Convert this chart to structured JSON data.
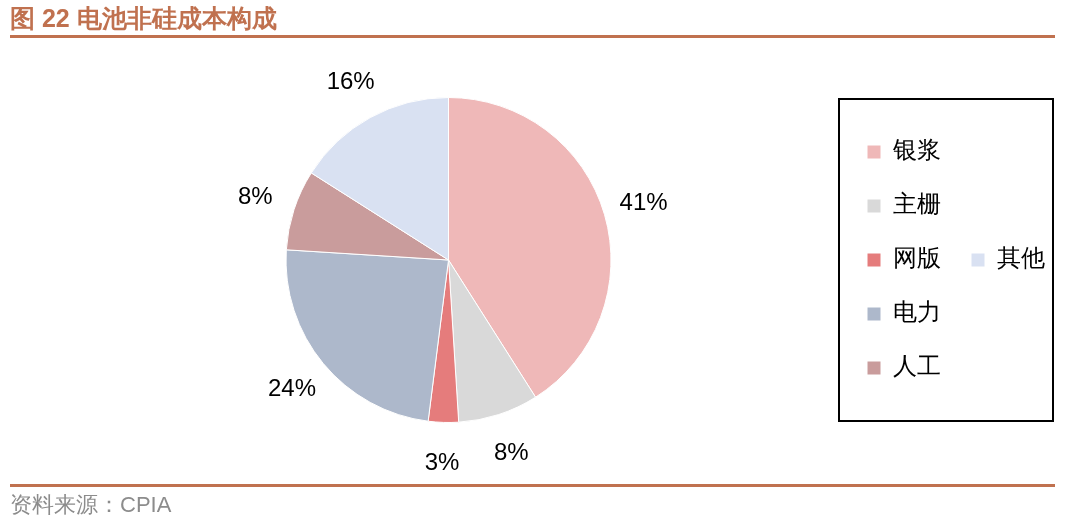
{
  "chart_data": {
    "type": "pie",
    "title": "图 22 电池非硅成本构成",
    "categories": [
      "银浆",
      "主栅",
      "网版",
      "电力",
      "人工",
      "其他"
    ],
    "values": [
      41,
      8,
      3,
      24,
      8,
      16
    ],
    "colors": [
      "#efb8b8",
      "#d9d9d9",
      "#e57c7c",
      "#adb8cb",
      "#c99c9c",
      "#d9e1f2"
    ],
    "value_labels": [
      "41%",
      "8%",
      "3%",
      "24%",
      "8%",
      "16%"
    ],
    "legend": "right",
    "annotations": [
      "资料来源：CPIA"
    ]
  }
}
